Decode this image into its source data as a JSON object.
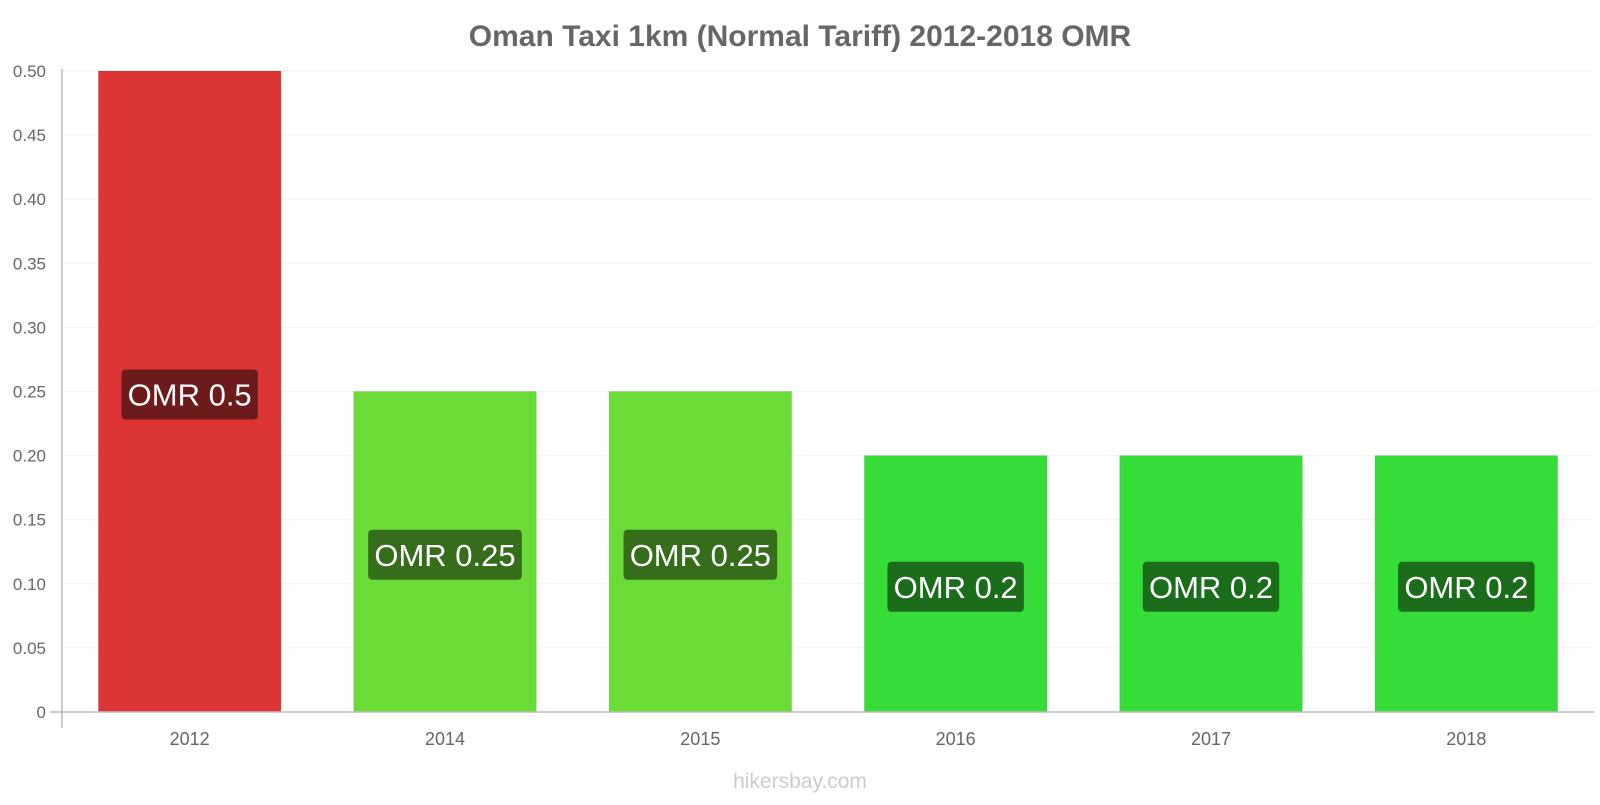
{
  "chart_data": {
    "type": "bar",
    "title": "Oman Taxi 1km (Normal Tariff) 2012-2018 OMR",
    "categories": [
      "2012",
      "2014",
      "2015",
      "2016",
      "2017",
      "2018"
    ],
    "values": [
      0.5,
      0.25,
      0.25,
      0.2,
      0.2,
      0.2
    ],
    "data_labels": [
      "OMR 0.5",
      "OMR 0.25",
      "OMR 0.25",
      "OMR 0.2",
      "OMR 0.2",
      "OMR 0.2"
    ],
    "bar_colors": [
      "#dc3535",
      "#6bdc37",
      "#6bdc37",
      "#36dc37",
      "#36dc37",
      "#36dc37"
    ],
    "label_box_colors": [
      "#6d1a1a",
      "#356d1b",
      "#356d1b",
      "#1b6d1b",
      "#1b6d1b",
      "#1b6d1b"
    ],
    "yticks": [
      "0",
      "0.05",
      "0.10",
      "0.15",
      "0.20",
      "0.25",
      "0.30",
      "0.35",
      "0.40",
      "0.45",
      "0.50"
    ],
    "ylim": [
      0,
      0.5
    ],
    "xlabel": "",
    "ylabel": "",
    "grid": true,
    "legend": "none"
  },
  "footer": {
    "source": "hikersbay.com"
  },
  "colors": {
    "title": "#666666",
    "ticks": "#666666",
    "axis": "#bbbbbb",
    "grid": "#f4f4f4",
    "footer": "#cccccc"
  }
}
